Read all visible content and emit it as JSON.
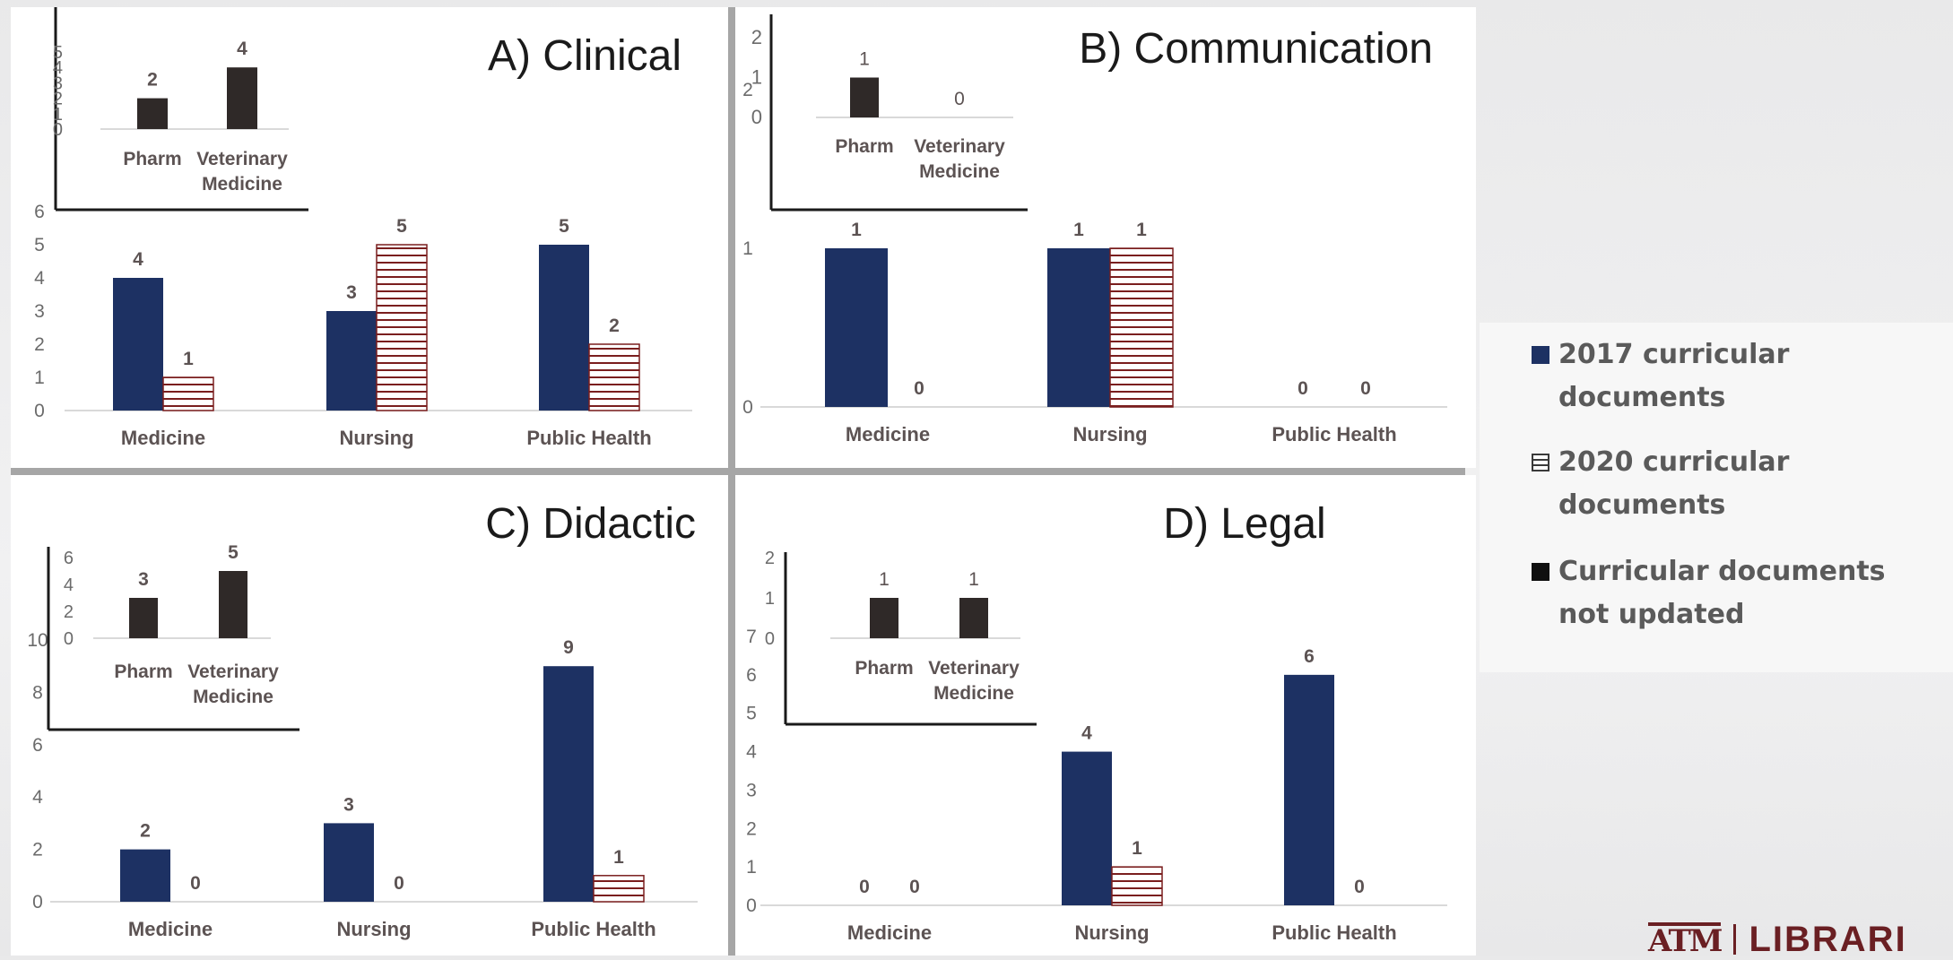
{
  "legend": {
    "items": [
      {
        "label": "2017 curricular documents",
        "swatch": "solid-navy"
      },
      {
        "label": "2020 curricular documents",
        "swatch": "hatched"
      },
      {
        "label": "Curricular documents not updated",
        "swatch": "solid-black"
      }
    ]
  },
  "logo": {
    "text": "LIBRARI",
    "mark": "ATM"
  },
  "colors": {
    "navy": "#1d3163",
    "black": "#2f2928",
    "hatch": "#7a1e1e",
    "text": "#5c5353",
    "axis": "#d9d9d9"
  },
  "chart_data": [
    {
      "type": "bar",
      "title": "A) Clinical",
      "categories": [
        "Medicine",
        "Nursing",
        "Public Health"
      ],
      "series": [
        {
          "name": "2017 curricular documents",
          "values": [
            4,
            3,
            5
          ]
        },
        {
          "name": "2020 curricular documents",
          "values": [
            1,
            5,
            2
          ]
        }
      ],
      "yticks": [
        0,
        1,
        2,
        3,
        4,
        5,
        6
      ],
      "ylim": [
        0,
        6
      ],
      "inset": {
        "categories": [
          "Pharm",
          "Veterinary Medicine"
        ],
        "values": [
          2,
          4
        ],
        "yticks": [
          0,
          1,
          2,
          3,
          4,
          5
        ],
        "ylim": [
          0,
          5
        ]
      }
    },
    {
      "type": "bar",
      "title": "B) Communication",
      "categories": [
        "Medicine",
        "Nursing",
        "Public Health"
      ],
      "series": [
        {
          "name": "2017 curricular documents",
          "values": [
            1,
            1,
            0
          ]
        },
        {
          "name": "2020 curricular documents",
          "values": [
            0,
            1,
            0
          ]
        }
      ],
      "yticks": [
        0,
        1,
        2
      ],
      "ylim": [
        0,
        2
      ],
      "inset": {
        "categories": [
          "Pharm",
          "Veterinary Medicine"
        ],
        "values": [
          1,
          0
        ],
        "yticks": [
          0,
          1,
          2
        ],
        "ylim": [
          0,
          2
        ]
      }
    },
    {
      "type": "bar",
      "title": "C) Didactic",
      "categories": [
        "Medicine",
        "Nursing",
        "Public Health"
      ],
      "series": [
        {
          "name": "2017 curricular documents",
          "values": [
            2,
            3,
            9
          ]
        },
        {
          "name": "2020 curricular documents",
          "values": [
            0,
            0,
            1
          ]
        }
      ],
      "yticks": [
        0,
        2,
        4,
        6,
        8,
        10
      ],
      "ylim": [
        0,
        10
      ],
      "inset": {
        "categories": [
          "Pharm",
          "Veterinary Medicine"
        ],
        "values": [
          3,
          5
        ],
        "yticks": [
          0,
          2,
          4,
          6
        ],
        "ylim": [
          0,
          6
        ]
      }
    },
    {
      "type": "bar",
      "title": "D) Legal",
      "categories": [
        "Medicine",
        "Nursing",
        "Public Health"
      ],
      "series": [
        {
          "name": "2017 curricular documents",
          "values": [
            0,
            4,
            6
          ]
        },
        {
          "name": "2020 curricular documents",
          "values": [
            0,
            1,
            0
          ]
        }
      ],
      "yticks": [
        0,
        1,
        2,
        3,
        4,
        5,
        6,
        7
      ],
      "ylim": [
        0,
        7
      ],
      "inset": {
        "categories": [
          "Pharm",
          "Veterinary Medicine"
        ],
        "values": [
          1,
          1
        ],
        "yticks": [
          0,
          1,
          2
        ],
        "ylim": [
          0,
          2
        ]
      }
    }
  ]
}
